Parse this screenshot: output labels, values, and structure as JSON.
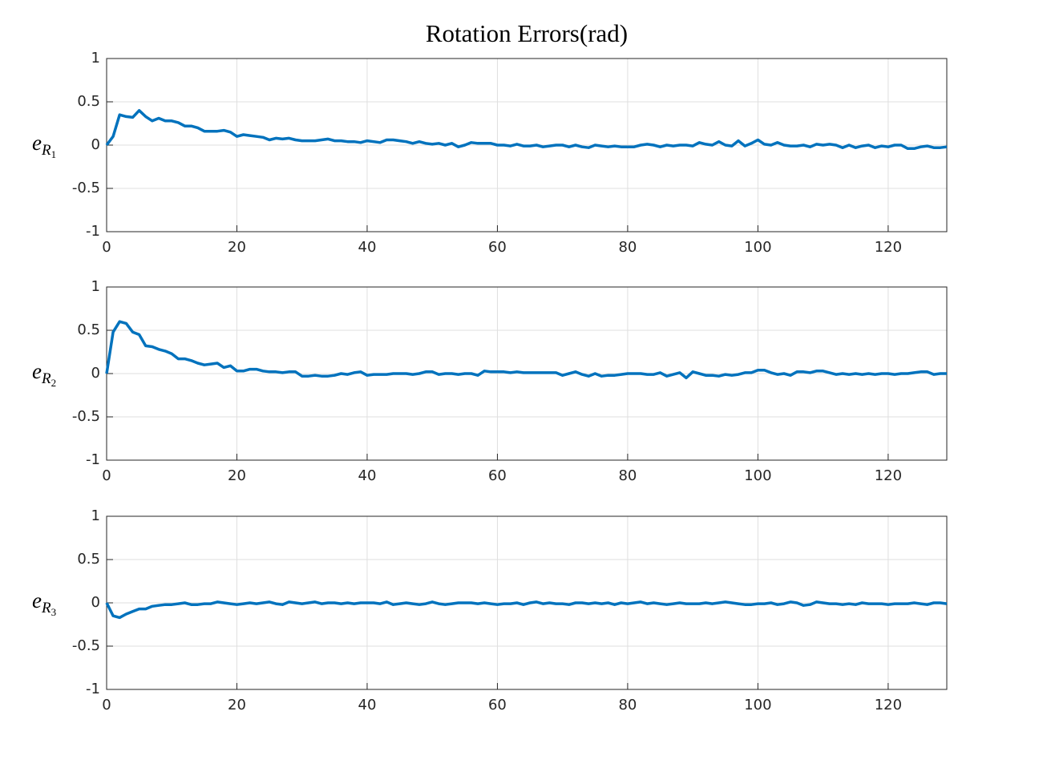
{
  "chart_data": [
    {
      "type": "line",
      "title": "Rotation Errors(rad)",
      "ylabel": [
        "e",
        "R",
        "1"
      ],
      "x": [
        0,
        1,
        2,
        3,
        4,
        5,
        6,
        7,
        8,
        9,
        10,
        11,
        12,
        13,
        14,
        15,
        16,
        17,
        18,
        19,
        20,
        21,
        22,
        23,
        24,
        25,
        26,
        27,
        28,
        29,
        30,
        31,
        32,
        33,
        34,
        35,
        36,
        37,
        38,
        39,
        40,
        41,
        42,
        43,
        44,
        45,
        46,
        47,
        48,
        49,
        50,
        51,
        52,
        53,
        54,
        55,
        56,
        57,
        58,
        59,
        60,
        61,
        62,
        63,
        64,
        65,
        66,
        67,
        68,
        69,
        70,
        71,
        72,
        73,
        74,
        75,
        76,
        77,
        78,
        79,
        80,
        81,
        82,
        83,
        84,
        85,
        86,
        87,
        88,
        89,
        90,
        91,
        92,
        93,
        94,
        95,
        96,
        97,
        98,
        99,
        100,
        101,
        102,
        103,
        104,
        105,
        106,
        107,
        108,
        109,
        110,
        111,
        112,
        113,
        114,
        115,
        116,
        117,
        118,
        119,
        120,
        121,
        122,
        123,
        124,
        125,
        126,
        127,
        128,
        129
      ],
      "series": [
        {
          "color": "#0072bd",
          "values": [
            0,
            0.1,
            0.35,
            0.33,
            0.32,
            0.4,
            0.33,
            0.28,
            0.31,
            0.28,
            0.28,
            0.26,
            0.22,
            0.22,
            0.2,
            0.16,
            0.16,
            0.16,
            0.17,
            0.15,
            0.1,
            0.12,
            0.11,
            0.1,
            0.09,
            0.06,
            0.08,
            0.07,
            0.08,
            0.06,
            0.05,
            0.05,
            0.05,
            0.06,
            0.07,
            0.05,
            0.05,
            0.04,
            0.04,
            0.03,
            0.05,
            0.04,
            0.03,
            0.06,
            0.06,
            0.05,
            0.04,
            0.02,
            0.04,
            0.02,
            0.01,
            0.02,
            0,
            0.02,
            -0.02,
            0,
            0.03,
            0.02,
            0.02,
            0.02,
            0,
            0,
            -0.01,
            0.01,
            -0.01,
            -0.01,
            0,
            -0.02,
            -0.01,
            0,
            0,
            -0.02,
            0,
            -0.02,
            -0.03,
            0,
            -0.01,
            -0.02,
            -0.01,
            -0.02,
            -0.02,
            -0.02,
            0,
            0.01,
            0,
            -0.02,
            0,
            -0.01,
            0,
            0,
            -0.01,
            0.03,
            0.01,
            0,
            0.04,
            0,
            -0.01,
            0.05,
            -0.01,
            0.02,
            0.06,
            0.01,
            0,
            0.03,
            0,
            -0.01,
            -0.01,
            0,
            -0.02,
            0.01,
            0,
            0.01,
            0,
            -0.03,
            0,
            -0.03,
            -0.01,
            0,
            -0.03,
            -0.01,
            -0.02,
            0,
            0,
            -0.04,
            -0.04,
            -0.02,
            -0.01,
            -0.03,
            -0.03,
            -0.02
          ]
        }
      ],
      "xlim": [
        0,
        129
      ],
      "xticks": [
        0,
        20,
        40,
        60,
        80,
        100,
        120
      ],
      "ylim": [
        -1,
        1
      ],
      "yticks": [
        -1,
        -0.5,
        0,
        0.5,
        1
      ],
      "grid": true
    },
    {
      "type": "line",
      "ylabel": [
        "e",
        "R",
        "2"
      ],
      "x": [
        0,
        1,
        2,
        3,
        4,
        5,
        6,
        7,
        8,
        9,
        10,
        11,
        12,
        13,
        14,
        15,
        16,
        17,
        18,
        19,
        20,
        21,
        22,
        23,
        24,
        25,
        26,
        27,
        28,
        29,
        30,
        31,
        32,
        33,
        34,
        35,
        36,
        37,
        38,
        39,
        40,
        41,
        42,
        43,
        44,
        45,
        46,
        47,
        48,
        49,
        50,
        51,
        52,
        53,
        54,
        55,
        56,
        57,
        58,
        59,
        60,
        61,
        62,
        63,
        64,
        65,
        66,
        67,
        68,
        69,
        70,
        71,
        72,
        73,
        74,
        75,
        76,
        77,
        78,
        79,
        80,
        81,
        82,
        83,
        84,
        85,
        86,
        87,
        88,
        89,
        90,
        91,
        92,
        93,
        94,
        95,
        96,
        97,
        98,
        99,
        100,
        101,
        102,
        103,
        104,
        105,
        106,
        107,
        108,
        109,
        110,
        111,
        112,
        113,
        114,
        115,
        116,
        117,
        118,
        119,
        120,
        121,
        122,
        123,
        124,
        125,
        126,
        127,
        128,
        129
      ],
      "series": [
        {
          "color": "#0072bd",
          "values": [
            0,
            0.48,
            0.6,
            0.58,
            0.48,
            0.45,
            0.32,
            0.31,
            0.28,
            0.26,
            0.23,
            0.17,
            0.17,
            0.15,
            0.12,
            0.1,
            0.11,
            0.12,
            0.07,
            0.09,
            0.03,
            0.03,
            0.05,
            0.05,
            0.03,
            0.02,
            0.02,
            0.01,
            0.02,
            0.02,
            -0.03,
            -0.03,
            -0.02,
            -0.03,
            -0.03,
            -0.02,
            0,
            -0.01,
            0.01,
            0.02,
            -0.02,
            -0.01,
            -0.01,
            -0.01,
            0,
            0,
            0,
            -0.01,
            0,
            0.02,
            0.02,
            -0.01,
            0,
            0,
            -0.01,
            0,
            0,
            -0.02,
            0.03,
            0.02,
            0.02,
            0.02,
            0.01,
            0.02,
            0.01,
            0.01,
            0.01,
            0.01,
            0.01,
            0.01,
            -0.02,
            0,
            0.02,
            -0.01,
            -0.03,
            0,
            -0.03,
            -0.02,
            -0.02,
            -0.01,
            0,
            0,
            0,
            -0.01,
            -0.01,
            0.01,
            -0.03,
            -0.01,
            0.01,
            -0.05,
            0.02,
            0,
            -0.02,
            -0.02,
            -0.03,
            -0.01,
            -0.02,
            -0.01,
            0.01,
            0.01,
            0.04,
            0.04,
            0.01,
            -0.01,
            0,
            -0.02,
            0.02,
            0.02,
            0.01,
            0.03,
            0.03,
            0.01,
            -0.01,
            0,
            -0.01,
            0,
            -0.01,
            0,
            -0.01,
            0,
            0,
            -0.01,
            0,
            0,
            0.01,
            0.02,
            0.02,
            -0.01,
            0,
            0
          ]
        }
      ],
      "xlim": [
        0,
        129
      ],
      "xticks": [
        0,
        20,
        40,
        60,
        80,
        100,
        120
      ],
      "ylim": [
        -1,
        1
      ],
      "yticks": [
        -1,
        -0.5,
        0,
        0.5,
        1
      ],
      "grid": true
    },
    {
      "type": "line",
      "ylabel": [
        "e",
        "R",
        "3"
      ],
      "x": [
        0,
        1,
        2,
        3,
        4,
        5,
        6,
        7,
        8,
        9,
        10,
        11,
        12,
        13,
        14,
        15,
        16,
        17,
        18,
        19,
        20,
        21,
        22,
        23,
        24,
        25,
        26,
        27,
        28,
        29,
        30,
        31,
        32,
        33,
        34,
        35,
        36,
        37,
        38,
        39,
        40,
        41,
        42,
        43,
        44,
        45,
        46,
        47,
        48,
        49,
        50,
        51,
        52,
        53,
        54,
        55,
        56,
        57,
        58,
        59,
        60,
        61,
        62,
        63,
        64,
        65,
        66,
        67,
        68,
        69,
        70,
        71,
        72,
        73,
        74,
        75,
        76,
        77,
        78,
        79,
        80,
        81,
        82,
        83,
        84,
        85,
        86,
        87,
        88,
        89,
        90,
        91,
        92,
        93,
        94,
        95,
        96,
        97,
        98,
        99,
        100,
        101,
        102,
        103,
        104,
        105,
        106,
        107,
        108,
        109,
        110,
        111,
        112,
        113,
        114,
        115,
        116,
        117,
        118,
        119,
        120,
        121,
        122,
        123,
        124,
        125,
        126,
        127,
        128,
        129
      ],
      "series": [
        {
          "color": "#0072bd",
          "values": [
            0,
            -0.15,
            -0.17,
            -0.13,
            -0.1,
            -0.07,
            -0.07,
            -0.04,
            -0.03,
            -0.02,
            -0.02,
            -0.01,
            0,
            -0.02,
            -0.02,
            -0.01,
            -0.01,
            0.01,
            0,
            -0.01,
            -0.02,
            -0.01,
            0,
            -0.01,
            0,
            0.01,
            -0.01,
            -0.02,
            0.01,
            0,
            -0.01,
            0,
            0.01,
            -0.01,
            0,
            0,
            -0.01,
            0,
            -0.01,
            0,
            0,
            0,
            -0.01,
            0.01,
            -0.02,
            -0.01,
            0,
            -0.01,
            -0.02,
            -0.01,
            0.01,
            -0.01,
            -0.02,
            -0.01,
            0,
            0,
            0,
            -0.01,
            0,
            -0.01,
            -0.02,
            -0.01,
            -0.01,
            0,
            -0.02,
            0,
            0.01,
            -0.01,
            0,
            -0.01,
            -0.01,
            -0.02,
            0,
            0,
            -0.01,
            0,
            -0.01,
            0,
            -0.02,
            0,
            -0.01,
            0,
            0.01,
            -0.01,
            0,
            -0.01,
            -0.02,
            -0.01,
            0,
            -0.01,
            -0.01,
            -0.01,
            0,
            -0.01,
            0,
            0.01,
            0,
            -0.01,
            -0.02,
            -0.02,
            -0.01,
            -0.01,
            0,
            -0.02,
            -0.01,
            0.01,
            0,
            -0.03,
            -0.02,
            0.01,
            0,
            -0.01,
            -0.01,
            -0.02,
            -0.01,
            -0.02,
            0,
            -0.01,
            -0.01,
            -0.01,
            -0.02,
            -0.01,
            -0.01,
            -0.01,
            0,
            -0.01,
            -0.02,
            0,
            0,
            -0.01
          ]
        }
      ],
      "xlim": [
        0,
        129
      ],
      "xticks": [
        0,
        20,
        40,
        60,
        80,
        100,
        120
      ],
      "ylim": [
        -1,
        1
      ],
      "yticks": [
        -1,
        -0.5,
        0,
        0.5,
        1
      ],
      "grid": true
    }
  ]
}
